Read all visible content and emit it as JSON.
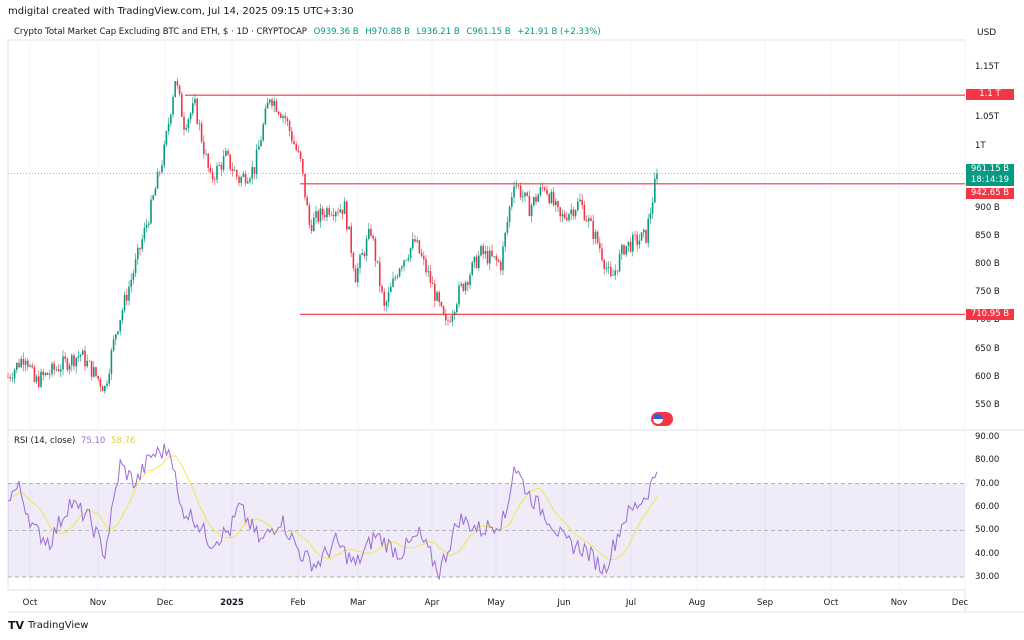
{
  "credit": "mdigital created with TradingView.com, Jul 14, 2025 09:15 UTC+3:30",
  "legend": {
    "symbol": "Crypto Total Market Cap Excluding BTC and ETH, $ · 1D · CRYPTOCAP",
    "open": "O939.36 B",
    "high": "H970.88 B",
    "low": "L936.21 B",
    "close": "C961.15 B",
    "change": "+21.91 B (+2.33%)"
  },
  "currency": "USD",
  "price_axis": [
    "1.15T",
    "1.05T",
    "1T",
    "900 B",
    "850 B",
    "800 B",
    "750 B",
    "700 B",
    "650 B",
    "600 B",
    "550 B"
  ],
  "badges": {
    "level_top": "1.1 T",
    "last_price": "961.15 B",
    "countdown": "18:14:19",
    "level_mid": "942.65 B",
    "level_bottom": "710.95 B"
  },
  "colors": {
    "up": "#089981",
    "down": "#f23645",
    "level": "#f23645",
    "rsi": "#9c6bd6",
    "rsi_ma": "#f0e84a"
  },
  "rsi": {
    "label": "RSI (14, close)",
    "value": "75.10",
    "ma": "58.76",
    "axis": [
      "90.00",
      "80.00",
      "70.00",
      "60.00",
      "50.00",
      "40.00",
      "30.00"
    ]
  },
  "time_axis": [
    "Oct",
    "Nov",
    "Dec",
    "2025",
    "Feb",
    "Mar",
    "Apr",
    "May",
    "Jun",
    "Jul",
    "Aug",
    "Sep",
    "Oct",
    "Nov",
    "Dec"
  ],
  "logo": "TradingView",
  "chart_data": {
    "type": "candlestick",
    "unit": "B USD",
    "levels": [
      1100,
      942.65,
      710.95
    ],
    "last": 961.15,
    "close_waypoints": [
      [
        0,
        600
      ],
      [
        8,
        640
      ],
      [
        12,
        590
      ],
      [
        24,
        620
      ],
      [
        33,
        640
      ],
      [
        44,
        580
      ],
      [
        49,
        680
      ],
      [
        58,
        800
      ],
      [
        65,
        900
      ],
      [
        71,
        1000
      ],
      [
        76,
        1130
      ],
      [
        80,
        1050
      ],
      [
        85,
        1080
      ],
      [
        92,
        950
      ],
      [
        99,
        990
      ],
      [
        105,
        950
      ],
      [
        112,
        970
      ],
      [
        119,
        1100
      ],
      [
        126,
        1060
      ],
      [
        133,
        980
      ],
      [
        137,
        870
      ],
      [
        146,
        900
      ],
      [
        153,
        900
      ],
      [
        158,
        780
      ],
      [
        165,
        860
      ],
      [
        171,
        720
      ],
      [
        178,
        800
      ],
      [
        185,
        840
      ],
      [
        192,
        770
      ],
      [
        199,
        690
      ],
      [
        205,
        750
      ],
      [
        215,
        820
      ],
      [
        224,
        800
      ],
      [
        230,
        950
      ],
      [
        237,
        900
      ],
      [
        244,
        940
      ],
      [
        251,
        880
      ],
      [
        260,
        910
      ],
      [
        269,
        830
      ],
      [
        274,
        770
      ],
      [
        280,
        830
      ],
      [
        290,
        850
      ],
      [
        295,
        961
      ]
    ],
    "rsi_waypoints": [
      [
        0,
        65
      ],
      [
        5,
        68
      ],
      [
        12,
        50
      ],
      [
        19,
        45
      ],
      [
        28,
        62
      ],
      [
        37,
        55
      ],
      [
        44,
        40
      ],
      [
        51,
        78
      ],
      [
        58,
        70
      ],
      [
        65,
        82
      ],
      [
        74,
        85
      ],
      [
        78,
        60
      ],
      [
        85,
        55
      ],
      [
        92,
        45
      ],
      [
        101,
        50
      ],
      [
        105,
        60
      ],
      [
        115,
        45
      ],
      [
        124,
        55
      ],
      [
        133,
        40
      ],
      [
        140,
        35
      ],
      [
        149,
        45
      ],
      [
        158,
        35
      ],
      [
        167,
        48
      ],
      [
        178,
        40
      ],
      [
        187,
        48
      ],
      [
        196,
        32
      ],
      [
        205,
        55
      ],
      [
        215,
        50
      ],
      [
        226,
        55
      ],
      [
        230,
        78
      ],
      [
        237,
        65
      ],
      [
        246,
        55
      ],
      [
        253,
        45
      ],
      [
        262,
        42
      ],
      [
        271,
        33
      ],
      [
        280,
        55
      ],
      [
        290,
        65
      ],
      [
        295,
        75
      ]
    ]
  }
}
